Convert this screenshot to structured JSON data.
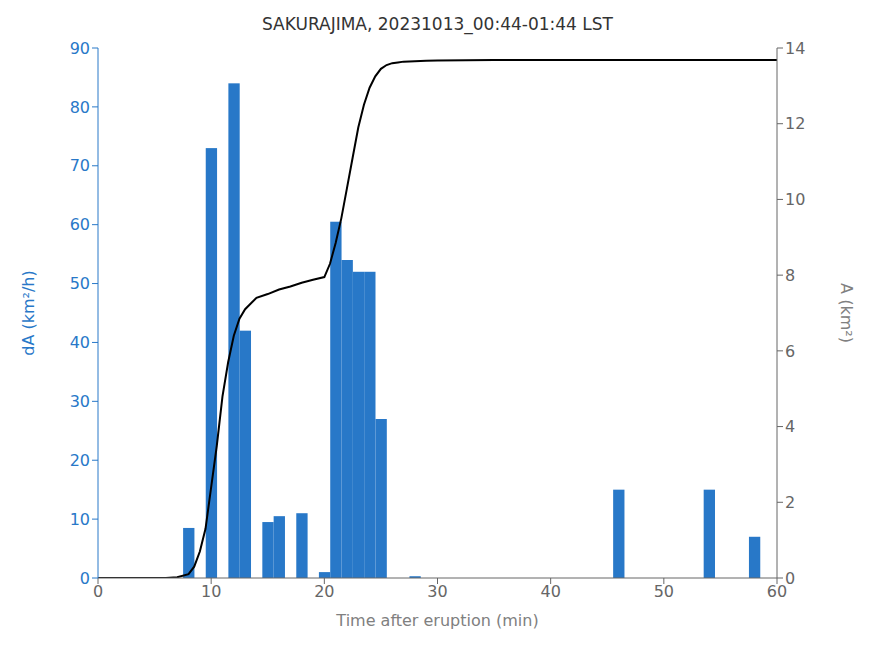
{
  "chart_data": {
    "type": "bar",
    "title": "SAKURAJIMA, 20231013_00:44-01:44 LST",
    "xlabel": "Time after eruption (min)",
    "ylabel": "dA (km²/h)",
    "y2label": "A (km²)",
    "xlim": [
      0,
      60
    ],
    "xticks": [
      0,
      10,
      20,
      30,
      40,
      50,
      60
    ],
    "ylim": [
      0,
      90
    ],
    "yticks": [
      0,
      10,
      20,
      30,
      40,
      50,
      60,
      70,
      80,
      90
    ],
    "y2lim": [
      0,
      14
    ],
    "y2ticks": [
      0,
      2,
      4,
      6,
      8,
      10,
      12,
      14
    ],
    "grid": false,
    "series": [
      {
        "type": "bar",
        "color": "#2878c8",
        "x": [
          8,
          10,
          12,
          13,
          15,
          16,
          18,
          20,
          21,
          22,
          23,
          24,
          25,
          28,
          46,
          54,
          58
        ],
        "values": [
          8.5,
          73,
          84,
          42,
          9.5,
          10.5,
          11,
          1.0,
          60.5,
          54,
          52,
          52,
          27,
          0.3,
          15,
          15,
          7
        ]
      },
      {
        "type": "line",
        "color": "#000000",
        "axis": "y2",
        "x": [
          0,
          5,
          6,
          7,
          8,
          8.5,
          9,
          9.5,
          10,
          10.5,
          11,
          11.5,
          12,
          12.5,
          13,
          13.5,
          14,
          15,
          16,
          17,
          18,
          19,
          20,
          20.5,
          21,
          21.5,
          22,
          22.5,
          23,
          23.5,
          24,
          24.5,
          25,
          25.5,
          26,
          26.5,
          27,
          28,
          29,
          30,
          35,
          40,
          45,
          50,
          55,
          60
        ],
        "values": [
          0,
          0,
          0.0,
          0.02,
          0.1,
          0.3,
          0.7,
          1.3,
          2.4,
          3.5,
          4.8,
          5.7,
          6.4,
          6.85,
          7.1,
          7.25,
          7.4,
          7.5,
          7.62,
          7.7,
          7.8,
          7.88,
          7.95,
          8.3,
          8.85,
          9.5,
          10.3,
          11.1,
          11.9,
          12.5,
          12.95,
          13.25,
          13.45,
          13.55,
          13.6,
          13.62,
          13.64,
          13.65,
          13.66,
          13.67,
          13.68,
          13.68,
          13.68,
          13.68,
          13.68,
          13.68
        ]
      }
    ]
  }
}
